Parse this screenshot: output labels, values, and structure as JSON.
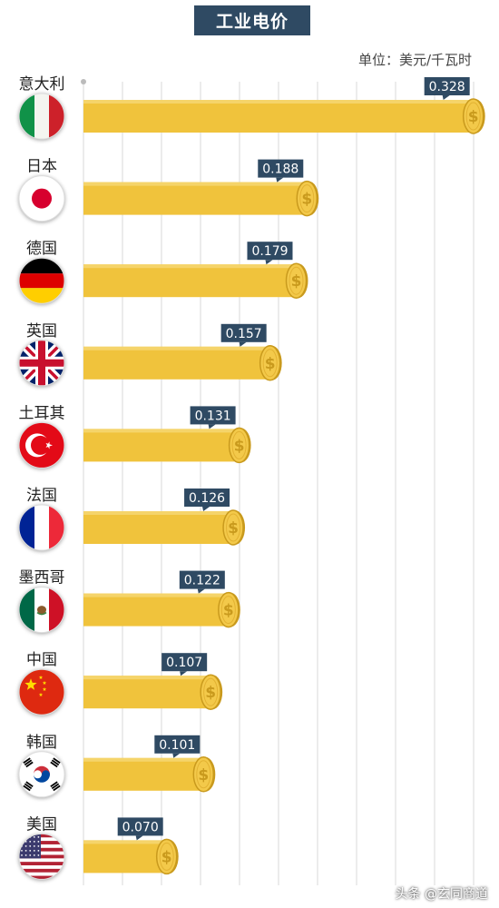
{
  "title": "工业电价",
  "unit": "单位：美元/千瓦时",
  "watermark": "头条 @玄同商道",
  "colors": {
    "bar": "#f0c33c",
    "bar_edge": "#d9a722",
    "coin": "#f3c94a",
    "coin_edge": "#c99a1d",
    "label_bg": "#2f4a63",
    "grid": "#d9d9d9"
  },
  "chart_data": {
    "type": "bar",
    "orientation": "horizontal",
    "title": "工业电价",
    "unit": "单位：美元/千瓦时",
    "xlim": [
      0,
      0.35
    ],
    "grid": true,
    "categories": [
      "意大利",
      "日本",
      "德国",
      "英国",
      "土耳其",
      "法国",
      "墨西哥",
      "中国",
      "韩国",
      "美国"
    ],
    "values": [
      0.328,
      0.188,
      0.179,
      0.157,
      0.131,
      0.126,
      0.122,
      0.107,
      0.101,
      0.07
    ],
    "value_labels": [
      "0.328",
      "0.188",
      "0.179",
      "0.157",
      "0.131",
      "0.126",
      "0.122",
      "0.107",
      "0.101",
      "0.070"
    ],
    "flag_icons": [
      "italy-flag-icon",
      "japan-flag-icon",
      "germany-flag-icon",
      "uk-flag-icon",
      "turkey-flag-icon",
      "france-flag-icon",
      "mexico-flag-icon",
      "china-flag-icon",
      "korea-flag-icon",
      "usa-flag-icon"
    ]
  }
}
